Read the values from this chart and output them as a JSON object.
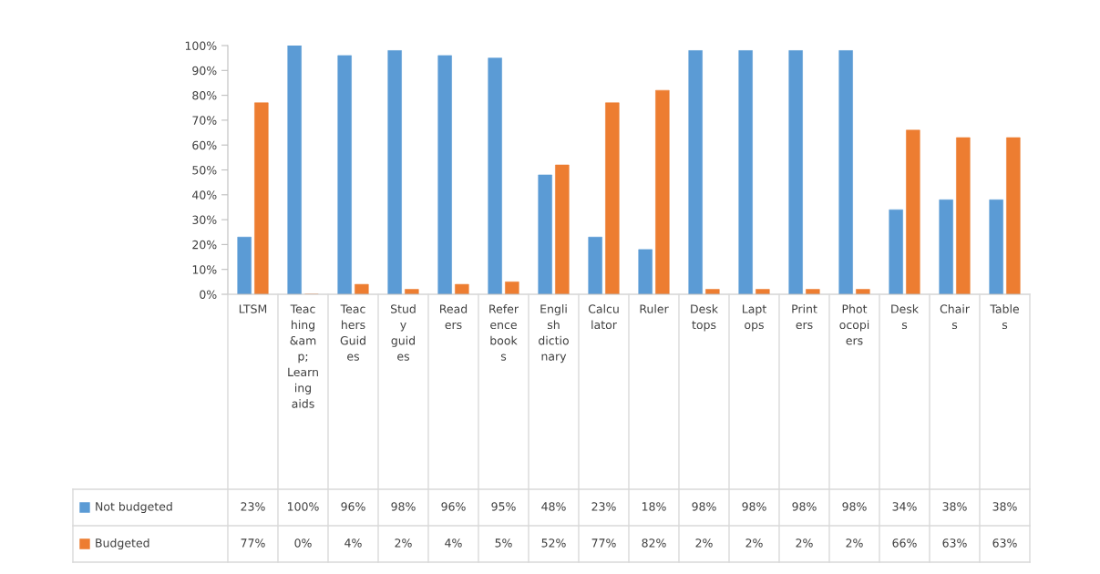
{
  "chart_data": {
    "type": "bar",
    "categories": [
      "LTSM",
      "Teaching &amp; Learning aids",
      "Teachers Guides",
      "Study guides",
      "Readers",
      "Reference books",
      "English dictionary",
      "Calculator",
      "Ruler",
      "Desktops",
      "Laptops",
      "Printers",
      "Photocopiers",
      "Desks",
      "Chairs",
      "Tables"
    ],
    "series": [
      {
        "name": "Not budgeted",
        "color": "#5b9bd5",
        "values": [
          23,
          100,
          96,
          98,
          96,
          95,
          48,
          23,
          18,
          98,
          98,
          98,
          98,
          34,
          38,
          38
        ],
        "value_labels": [
          "23%",
          "100%",
          "96%",
          "98%",
          "96%",
          "95%",
          "48%",
          "23%",
          "18%",
          "98%",
          "98%",
          "98%",
          "98%",
          "34%",
          "38%",
          "38%"
        ]
      },
      {
        "name": "Budgeted",
        "color": "#ed7d31",
        "values": [
          77,
          0,
          4,
          2,
          4,
          5,
          52,
          77,
          82,
          2,
          2,
          2,
          2,
          66,
          63,
          63
        ],
        "value_labels": [
          "77%",
          "0%",
          "4%",
          "2%",
          "4%",
          "5%",
          "52%",
          "77%",
          "82%",
          "2%",
          "2%",
          "2%",
          "2%",
          "66%",
          "63%",
          "63%"
        ]
      }
    ],
    "ylim": [
      0,
      100
    ],
    "yticks": [
      {
        "value": 0,
        "label": "0%"
      },
      {
        "value": 10,
        "label": "10%"
      },
      {
        "value": 20,
        "label": "20%"
      },
      {
        "value": 30,
        "label": "30%"
      },
      {
        "value": 40,
        "label": "40%"
      },
      {
        "value": 50,
        "label": "50%"
      },
      {
        "value": 60,
        "label": "60%"
      },
      {
        "value": 70,
        "label": "70%"
      },
      {
        "value": 80,
        "label": "80%"
      },
      {
        "value": 90,
        "label": "90%"
      },
      {
        "value": 100,
        "label": "100%"
      }
    ],
    "grid": false,
    "legend": "bottom"
  }
}
